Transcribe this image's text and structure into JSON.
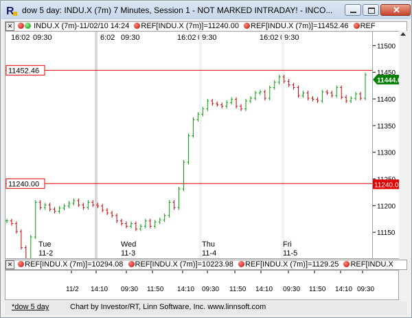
{
  "window": {
    "title": "dow 5 day: INDU.X (7m) 7 Minutes, Session 1 - NOT MARKED INTRADAY! - INCO...",
    "app_icon": "investor-rt-logo-icon",
    "controls": [
      "minimize-icon",
      "maximize-icon",
      "close-icon"
    ]
  },
  "top_legend": {
    "items": [
      {
        "text": "INDU.X (7m)-11/02/10 14:24",
        "icon": "green-dot-icon"
      },
      {
        "text": "REF[INDU.X (7m)]=11240.00",
        "icon": "red-dot-icon"
      },
      {
        "text": "REF[INDU.X (7m)]=11452.46",
        "icon": "red-dot-icon"
      },
      {
        "text": "REF",
        "icon": "red-dot-icon"
      }
    ]
  },
  "bottom_legend": {
    "items": [
      {
        "text": "REF[INDU.X (7m)]=10294.08",
        "icon": "red-dot-icon"
      },
      {
        "text": "REF[INDU.X (7m)]=10223.98",
        "icon": "red-dot-icon"
      },
      {
        "text": "REF[INDU.X (7m)]=1129.25",
        "icon": "red-dot-icon"
      },
      {
        "text": "REF[INDU.X",
        "icon": "red-dot-icon"
      }
    ]
  },
  "session_labels": [
    "16:02",
    "09:30",
    "6:02",
    "09:30",
    "16:02",
    "09:30",
    "16:02",
    "09:30"
  ],
  "day_labels": [
    {
      "day": "Tue",
      "date": "11-2"
    },
    {
      "day": "Wed",
      "date": "11-3"
    },
    {
      "day": "Thu",
      "date": "11-4"
    },
    {
      "day": "Fri",
      "date": "11-5"
    }
  ],
  "tabs": {
    "active": "*dow 5 day"
  },
  "credit": "Chart by Investor/RT, Linn Software, Inc. www.linnsoft.com",
  "colors": {
    "up": "#00a000",
    "down": "#c00000",
    "ref_line": "#e00000",
    "last_price_bg": "#008000",
    "ref_label_bg": "#e00000"
  },
  "chart_data": {
    "type": "line",
    "title": "",
    "symbol": "INDU.X (7m)",
    "ylim": [
      11100,
      11525
    ],
    "y_ticks": [
      11150,
      11200,
      11250,
      11300,
      11350,
      11400,
      11450,
      11500
    ],
    "x_ticks": [
      "11/2",
      "14:10",
      "09:30",
      "11:50",
      "14:10",
      "09:30",
      "11:50",
      "14:10",
      "09:30",
      "11:50",
      "14:10",
      "09:30"
    ],
    "reference_lines": [
      {
        "label": "11452.46",
        "value": 11452.46
      },
      {
        "label": "11240.00",
        "value": 11240.0
      }
    ],
    "last_price": {
      "label": "11444.00",
      "value": 11444.0
    },
    "series": [
      {
        "values": [
          11170,
          11165,
          11150,
          11120,
          11095,
          11140,
          11205,
          11195,
          11200,
          11192,
          11188,
          11194,
          11198,
          11203,
          11208,
          11200,
          11195,
          11205,
          11200,
          11198,
          11190,
          11185,
          11180,
          11170,
          11165,
          11160,
          11165,
          11155,
          11160,
          11170,
          11160,
          11168,
          11172,
          11180,
          11205,
          11195,
          11230,
          11280,
          11330,
          11360,
          11370,
          11380,
          11395,
          11390,
          11388,
          11385,
          11392,
          11398,
          11385,
          11380,
          11395,
          11400,
          11410,
          11412,
          11400,
          11420,
          11430,
          11440,
          11432,
          11425,
          11420,
          11405,
          11410,
          11400,
          11398,
          11395,
          11412,
          11410,
          11405,
          11420,
          11402,
          11395,
          11400,
          11408,
          11400,
          11444
        ]
      }
    ]
  }
}
